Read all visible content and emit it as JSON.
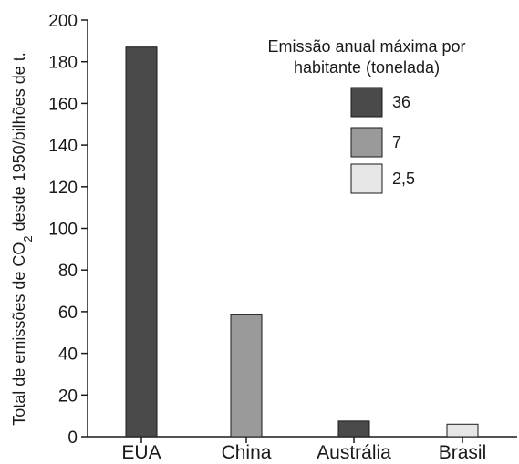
{
  "chart_data": {
    "type": "bar",
    "categories": [
      "EUA",
      "China",
      "Austrália",
      "Brasil"
    ],
    "values": [
      187,
      58.5,
      7.5,
      6
    ],
    "bar_group": [
      "36",
      "7",
      "36",
      "2,5"
    ],
    "ylabel_main": "Total de emissões de CO",
    "ylabel_sub": "2",
    "ylabel_rest": " desde 1950/bilhões de t.",
    "xlabel": "",
    "ylim": [
      0,
      200
    ],
    "yticks": [
      0,
      20,
      40,
      60,
      80,
      100,
      120,
      140,
      160,
      180,
      200
    ],
    "ytick_labels": [
      "0",
      "20",
      "40",
      "60",
      "80",
      "100",
      "120",
      "140",
      "160",
      "180",
      "200"
    ],
    "grid": false,
    "legend": {
      "title_line1": "Emissão anual máxima por",
      "title_line2": "habitante (tonelada)",
      "placement": "top-right",
      "items": [
        {
          "label": "36",
          "color": "#4a4a4a"
        },
        {
          "label": "7",
          "color": "#9a9a9a"
        },
        {
          "label": "2,5",
          "color": "#e6e6e6"
        }
      ]
    }
  }
}
